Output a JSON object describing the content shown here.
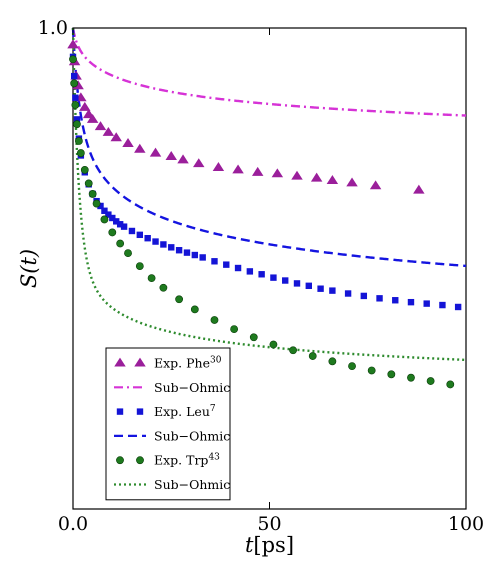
{
  "chart_data": {
    "type": "scatter",
    "title": "",
    "xlabel": {
      "var": "t",
      "unit": "[ps]"
    },
    "ylabel": "S(t)",
    "xlim": [
      0,
      100
    ],
    "ylim": [
      0,
      1.0
    ],
    "xticks": [
      {
        "value": 0,
        "label": "0.0"
      },
      {
        "value": 50,
        "label": "50"
      },
      {
        "value": 100,
        "label": "100"
      }
    ],
    "yticks": [
      {
        "value": 1.0,
        "label": "1.0"
      }
    ],
    "grid": false,
    "legend_position": "lower-left",
    "series": [
      {
        "name": "Exp. Phe",
        "name_sup": "30",
        "marker": "triangle",
        "color": "#9b1f9b",
        "x": [
          0,
          0.4,
          0.8,
          1.3,
          2,
          3,
          4,
          5,
          7,
          9,
          11,
          14,
          17,
          21,
          25,
          28,
          32,
          37,
          42,
          47,
          52,
          57,
          62,
          66,
          71,
          77,
          88
        ],
        "y": [
          0.965,
          0.93,
          0.9,
          0.88,
          0.855,
          0.835,
          0.82,
          0.81,
          0.795,
          0.783,
          0.772,
          0.76,
          0.748,
          0.74,
          0.733,
          0.726,
          0.718,
          0.71,
          0.705,
          0.7,
          0.697,
          0.692,
          0.688,
          0.683,
          0.678,
          0.672,
          0.663
        ]
      },
      {
        "name": "Sub−Ohmic",
        "line": "dashdot",
        "color": "#d633d6",
        "fit": {
          "a": 0.46,
          "b": 0.555,
          "c": 0.095,
          "tau": 3.5
        }
      },
      {
        "name": "Exp. Leu",
        "name_sup": "7",
        "marker": "square",
        "color": "#1414d6",
        "x": [
          0,
          0.3,
          0.6,
          1,
          1.5,
          2,
          3,
          4,
          5,
          6,
          7,
          8,
          9,
          10,
          11,
          12,
          13,
          15,
          17,
          19,
          21,
          23,
          25,
          27,
          29,
          31,
          33,
          36,
          39,
          42,
          45,
          48,
          51,
          54,
          57,
          60,
          63,
          66,
          70,
          74,
          78,
          82,
          86,
          90,
          94,
          98
        ],
        "y": [
          0.94,
          0.9,
          0.855,
          0.81,
          0.77,
          0.735,
          0.7,
          0.675,
          0.655,
          0.64,
          0.63,
          0.62,
          0.612,
          0.605,
          0.598,
          0.592,
          0.587,
          0.578,
          0.57,
          0.563,
          0.556,
          0.55,
          0.544,
          0.538,
          0.533,
          0.528,
          0.523,
          0.515,
          0.508,
          0.501,
          0.494,
          0.488,
          0.481,
          0.475,
          0.469,
          0.464,
          0.458,
          0.454,
          0.448,
          0.443,
          0.438,
          0.434,
          0.43,
          0.427,
          0.424,
          0.42
        ]
      },
      {
        "name": "Sub−Ohmic",
        "line": "dashed",
        "color": "#1414e0",
        "fit": {
          "a": 0.09,
          "b": 0.83,
          "c": 0.15,
          "tau": 1.7
        }
      },
      {
        "name": "Exp. Trp",
        "name_sup": "43",
        "marker": "circle",
        "color": "#1e7a1e",
        "x": [
          0,
          0.3,
          0.6,
          1,
          1.5,
          2,
          3,
          4,
          5,
          6,
          8,
          10,
          12,
          14,
          17,
          20,
          23,
          27,
          31,
          36,
          41,
          46,
          51,
          56,
          61,
          66,
          71,
          76,
          81,
          86,
          91,
          96
        ],
        "y": [
          0.935,
          0.885,
          0.84,
          0.8,
          0.765,
          0.74,
          0.705,
          0.677,
          0.655,
          0.635,
          0.602,
          0.575,
          0.552,
          0.532,
          0.505,
          0.48,
          0.46,
          0.436,
          0.415,
          0.393,
          0.374,
          0.357,
          0.342,
          0.33,
          0.318,
          0.307,
          0.297,
          0.288,
          0.28,
          0.273,
          0.266,
          0.259
        ]
      },
      {
        "name": "Sub−Ohmic",
        "line": "dotted",
        "color": "#2e8b2e",
        "fit": {
          "a": 0.185,
          "b": 0.455,
          "c": 0.28,
          "tau": 1.5
        }
      }
    ]
  }
}
